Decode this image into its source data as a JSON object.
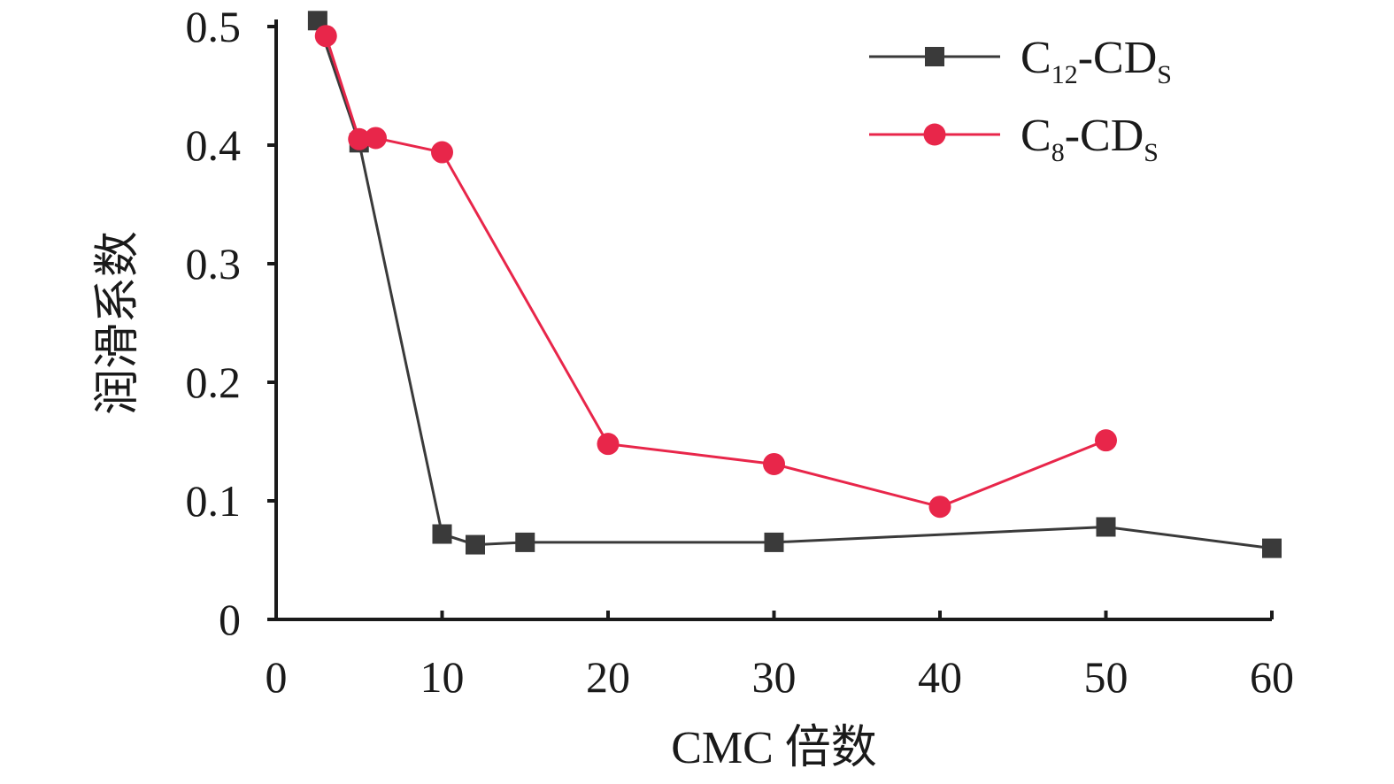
{
  "chart_data": {
    "type": "line",
    "xlabel": "CMC 倍数",
    "ylabel": "润滑系数",
    "xlim": [
      0,
      60
    ],
    "ylim": [
      0,
      0.5
    ],
    "x_ticks": [
      "0",
      "10",
      "20",
      "30",
      "40",
      "50",
      "60"
    ],
    "y_ticks": [
      "0",
      "0.1",
      "0.2",
      "0.3",
      "0.4",
      "0.5"
    ],
    "grid": false,
    "legend_position": "top-right",
    "series": [
      {
        "name": "C12-CDS",
        "legend": {
          "base": "C",
          "sub1": "12",
          "mid": "-CD",
          "sub2": "S"
        },
        "color": "#3a3a3a",
        "marker": "square",
        "points": [
          {
            "x": 2.5,
            "y": 0.505
          },
          {
            "x": 5,
            "y": 0.402
          },
          {
            "x": 10,
            "y": 0.072
          },
          {
            "x": 12,
            "y": 0.063
          },
          {
            "x": 15,
            "y": 0.065
          },
          {
            "x": 30,
            "y": 0.065
          },
          {
            "x": 50,
            "y": 0.078
          },
          {
            "x": 60,
            "y": 0.06
          }
        ]
      },
      {
        "name": "C8-CDS",
        "legend": {
          "base": "C",
          "sub1": "8",
          "mid": "-CD",
          "sub2": "S"
        },
        "color": "#e8264a",
        "marker": "circle",
        "points": [
          {
            "x": 3,
            "y": 0.492
          },
          {
            "x": 5,
            "y": 0.405
          },
          {
            "x": 6,
            "y": 0.406
          },
          {
            "x": 10,
            "y": 0.394
          },
          {
            "x": 20,
            "y": 0.148
          },
          {
            "x": 30,
            "y": 0.131
          },
          {
            "x": 40,
            "y": 0.095
          },
          {
            "x": 50,
            "y": 0.151
          }
        ]
      }
    ]
  }
}
